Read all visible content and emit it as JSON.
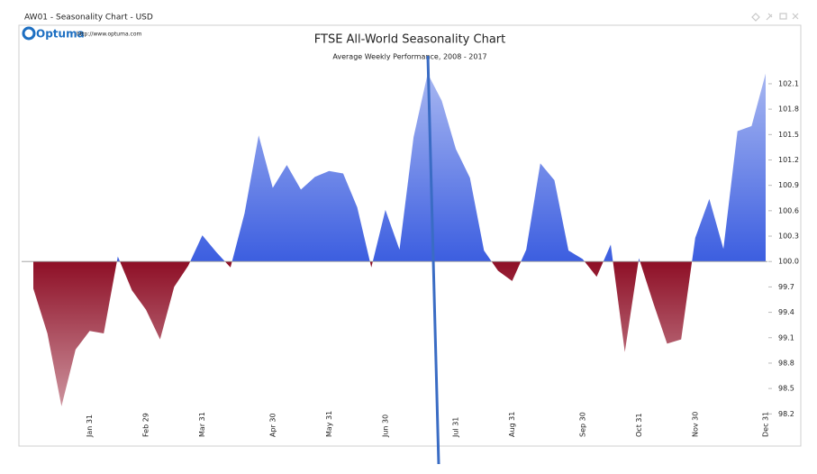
{
  "window": {
    "title": "AW01 - Seasonality Chart - USD"
  },
  "logo": {
    "brand": "Optuma",
    "url": "http://www.optuma.com"
  },
  "chart_data": {
    "type": "area",
    "title": "FTSE All-World Seasonality Chart",
    "subtitle": "Average Weekly Performance, 2008 - 2017",
    "categories": [
      null,
      null,
      null,
      null,
      "Jan 31",
      null,
      null,
      null,
      "Feb 29",
      null,
      null,
      null,
      "Mar 31",
      null,
      null,
      null,
      null,
      "Apr 30",
      null,
      null,
      null,
      "May 31",
      null,
      null,
      null,
      "Jun 30",
      null,
      null,
      null,
      null,
      "Jul 31",
      null,
      null,
      null,
      "Aug 31",
      null,
      null,
      null,
      null,
      "Sep 30",
      null,
      null,
      null,
      "Oct 31",
      null,
      null,
      null,
      "Nov 30",
      null,
      null,
      null,
      null,
      "Dec 31"
    ],
    "values": [
      99.68,
      99.15,
      98.29,
      98.96,
      99.18,
      99.15,
      100.06,
      99.66,
      99.43,
      99.08,
      99.7,
      99.95,
      100.31,
      100.11,
      99.93,
      100.57,
      101.49,
      100.87,
      101.14,
      100.85,
      101.0,
      101.07,
      101.04,
      100.64,
      99.93,
      100.61,
      100.14,
      101.47,
      102.22,
      101.9,
      101.33,
      100.99,
      100.13,
      99.89,
      99.77,
      100.14,
      101.16,
      100.96,
      100.13,
      100.03,
      99.82,
      100.2,
      98.93,
      100.04,
      99.52,
      99.03,
      99.08,
      100.28,
      100.74,
      100.15,
      101.54,
      101.6,
      102.22
    ],
    "baseline": 100,
    "colors": {
      "above": "#3c5ee0",
      "below": "#8e0f26"
    },
    "ylim": [
      97.82,
      102.77
    ],
    "yticks": [
      98.2,
      98.5,
      98.8,
      99.1,
      99.4,
      99.7,
      {
        "value": 100,
        "label": "100.0"
      },
      100.3,
      100.6,
      100.9,
      101.2,
      101.5,
      101.8,
      102.1
    ]
  }
}
